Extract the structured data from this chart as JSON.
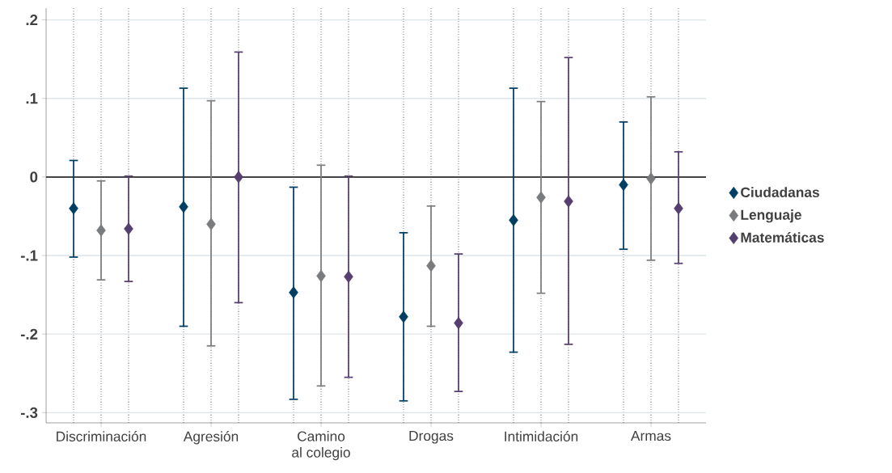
{
  "chart_data": {
    "type": "scatter",
    "categories": [
      "Discriminación",
      "Agresión",
      "Camino\nal colegio",
      "Drogas",
      "Intimidación",
      "Armas"
    ],
    "series": [
      {
        "name": "Ciudadanas",
        "color": "#003f63",
        "values": [
          -0.04,
          -0.038,
          -0.147,
          -0.178,
          -0.055,
          -0.01
        ],
        "errors": [
          [
            -0.102,
            0.021
          ],
          [
            -0.19,
            0.113
          ],
          [
            -0.283,
            -0.013
          ],
          [
            -0.285,
            -0.071
          ],
          [
            -0.223,
            0.113
          ],
          [
            -0.092,
            0.07
          ]
        ]
      },
      {
        "name": "Lenguaje",
        "color": "#7a7b7d",
        "values": [
          -0.068,
          -0.06,
          -0.126,
          -0.113,
          -0.026,
          -0.002
        ],
        "errors": [
          [
            -0.131,
            -0.005
          ],
          [
            -0.215,
            0.097
          ],
          [
            -0.266,
            0.015
          ],
          [
            -0.19,
            -0.037
          ],
          [
            -0.148,
            0.096
          ],
          [
            -0.106,
            0.102
          ]
        ]
      },
      {
        "name": "Matemáticas",
        "color": "#553f6e",
        "values": [
          -0.066,
          0.0,
          -0.127,
          -0.186,
          -0.031,
          -0.04
        ],
        "errors": [
          [
            -0.133,
            0.001
          ],
          [
            -0.16,
            0.159
          ],
          [
            -0.255,
            0.001
          ],
          [
            -0.273,
            -0.098
          ],
          [
            -0.213,
            0.152
          ],
          [
            -0.11,
            0.032
          ]
        ]
      }
    ],
    "ylim": [
      -0.313,
      0.215
    ],
    "yticks": [
      {
        "value": -0.3,
        "label": "-.3"
      },
      {
        "value": -0.2,
        "label": "-.2"
      },
      {
        "value": -0.1,
        "label": "-.1"
      },
      0,
      {
        "value": 0.1,
        "label": ".1"
      },
      {
        "value": 0.2,
        "label": ".2"
      }
    ],
    "ref_lines": [
      {
        "axis": "y",
        "value": 0,
        "color": "#444444"
      }
    ],
    "grid": true,
    "legend": "right",
    "marker": "diamond"
  }
}
